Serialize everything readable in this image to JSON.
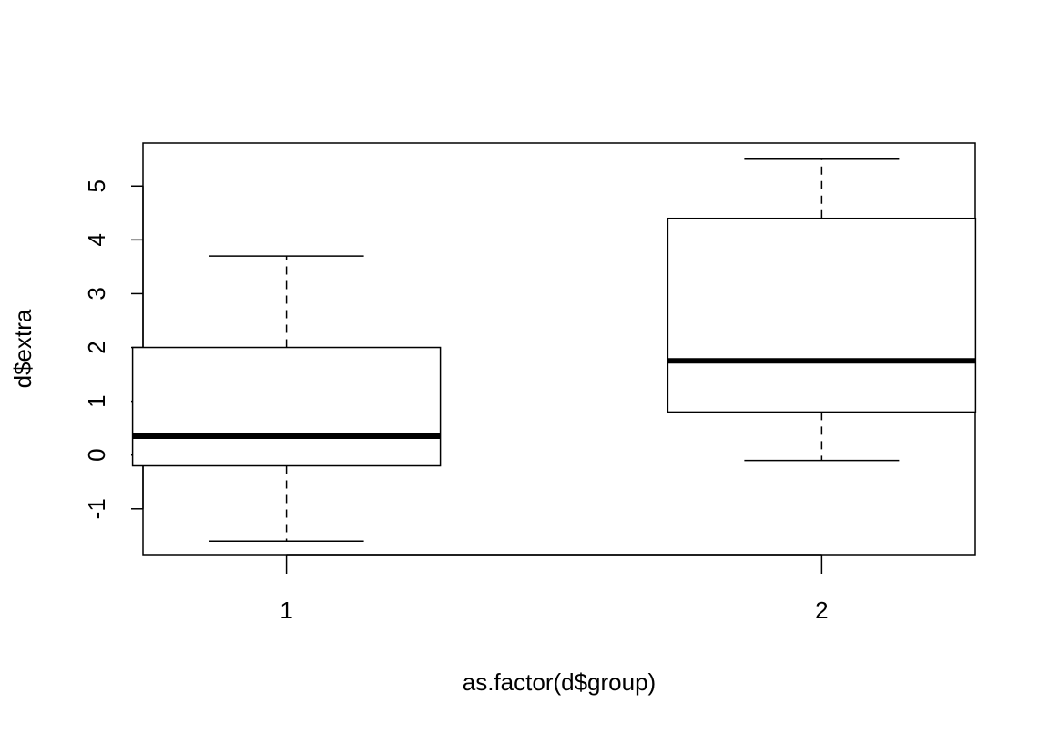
{
  "chart_data": {
    "type": "boxplot",
    "title": "",
    "xlabel": "as.factor(d$group)",
    "ylabel": "d$extra",
    "ylim": [
      -1.85,
      5.8
    ],
    "yticks": [
      "-1",
      "0",
      "1",
      "2",
      "3",
      "4",
      "5"
    ],
    "grid": false,
    "legend": "none",
    "categories": [
      "1",
      "2"
    ],
    "boxes": [
      {
        "category": "1",
        "whisker_low": -1.6,
        "q1": -0.2,
        "median": 0.35,
        "q3": 2.0,
        "whisker_high": 3.7
      },
      {
        "category": "2",
        "whisker_low": -0.1,
        "q1": 0.8,
        "median": 1.75,
        "q3": 4.4,
        "whisker_high": 5.5
      }
    ]
  }
}
